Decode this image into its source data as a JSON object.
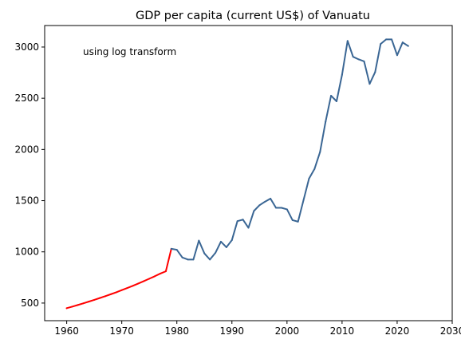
{
  "chart_data": {
    "type": "line",
    "title": "GDP per capita (current US$) of Vanuatu",
    "annotation": "using log transform",
    "xlim": [
      1956,
      2030
    ],
    "ylim": [
      328,
      3210
    ],
    "x_ticks": [
      1960,
      1970,
      1980,
      1990,
      2000,
      2010,
      2020,
      2030
    ],
    "y_ticks": [
      500,
      1000,
      1500,
      2000,
      2500,
      3000
    ],
    "grid": false,
    "colors": {
      "imputed": "#ff0000",
      "observed": "#3a6694"
    },
    "series": [
      {
        "style": "imputed",
        "x": [
          1960,
          1961,
          1962,
          1963,
          1964,
          1965,
          1966,
          1967,
          1968,
          1969,
          1970,
          1971,
          1972,
          1973,
          1974,
          1975,
          1976,
          1977,
          1978,
          1979
        ],
        "y": [
          450,
          465,
          481,
          497,
          514,
          531,
          549,
          567,
          586,
          605,
          626,
          647,
          668,
          691,
          714,
          738,
          762,
          788,
          810,
          1030
        ]
      },
      {
        "style": "observed",
        "x": [
          1979,
          1980,
          1981,
          1982,
          1983,
          1984,
          1985,
          1986,
          1987,
          1988,
          1989,
          1990,
          1991,
          1992,
          1993,
          1994,
          1995,
          1996,
          1997,
          1998,
          1999,
          2000,
          2001,
          2002,
          2003,
          2004,
          2005,
          2006,
          2007,
          2008,
          2009,
          2010,
          2011,
          2012,
          2013,
          2014,
          2015,
          2016,
          2017,
          2018,
          2019,
          2020,
          2021,
          2022
        ],
        "y": [
          1030,
          1020,
          945,
          925,
          925,
          1110,
          985,
          925,
          990,
          1100,
          1045,
          1115,
          1300,
          1315,
          1235,
          1400,
          1455,
          1490,
          1520,
          1430,
          1430,
          1415,
          1310,
          1295,
          1505,
          1715,
          1810,
          1975,
          2270,
          2525,
          2470,
          2730,
          3060,
          2905,
          2880,
          2860,
          2640,
          2755,
          3030,
          3075,
          3075,
          2920,
          3045,
          3010
        ]
      }
    ]
  }
}
